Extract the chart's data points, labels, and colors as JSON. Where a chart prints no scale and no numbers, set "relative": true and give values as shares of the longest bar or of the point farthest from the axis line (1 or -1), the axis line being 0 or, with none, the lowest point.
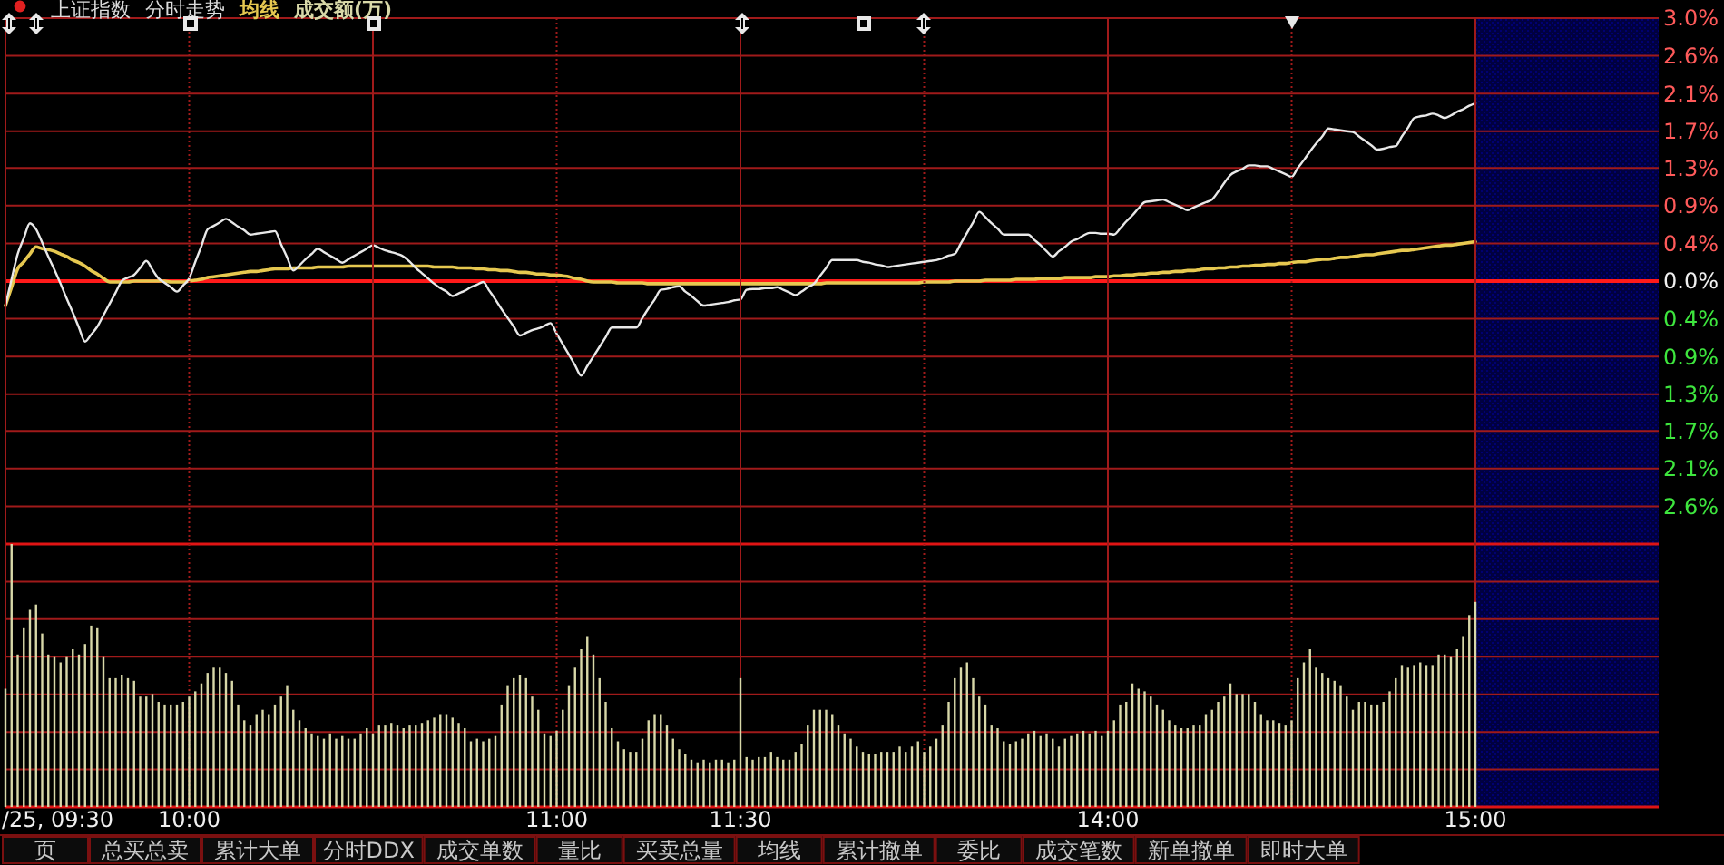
{
  "chart_data": [
    {
      "type": "line",
      "title": "上证指数",
      "subtitle": "分时走势",
      "categories": [
        null,
        null,
        null,
        null,
        null,
        null,
        null,
        null,
        null,
        null,
        null,
        null,
        null,
        null,
        null,
        null,
        null,
        null,
        null,
        null,
        null,
        null,
        null,
        null,
        null,
        null,
        null,
        null,
        null,
        null,
        null,
        null,
        null,
        null,
        null,
        null,
        null,
        null,
        null,
        null,
        null,
        null,
        null,
        null,
        null,
        null,
        null,
        null,
        null,
        null,
        null,
        null,
        null,
        null,
        null,
        null,
        null,
        null,
        null,
        null,
        null,
        null,
        null,
        null,
        null,
        null,
        null,
        null,
        null,
        null,
        null,
        null,
        null,
        null,
        null,
        null,
        null,
        null,
        null,
        null,
        null,
        null,
        null,
        null,
        null,
        null,
        null,
        null,
        null,
        null,
        null,
        null,
        null,
        null,
        null,
        null,
        null,
        null,
        null,
        null,
        null,
        null,
        null,
        null,
        null,
        null,
        null,
        null,
        null,
        null,
        null,
        null,
        null,
        null,
        null,
        null,
        null,
        null,
        null,
        null,
        null,
        null,
        null,
        null,
        null,
        null,
        null,
        null,
        null,
        null,
        null,
        null,
        null,
        null,
        null,
        null,
        null,
        null,
        null,
        null,
        null,
        null,
        null,
        null,
        null,
        null,
        null,
        null,
        null,
        null,
        null,
        null,
        null,
        null,
        null,
        null,
        null,
        null,
        null,
        null,
        null,
        null,
        null,
        null,
        null,
        null,
        null,
        null,
        null,
        null,
        null,
        null,
        null,
        null,
        null,
        null,
        null,
        null,
        null,
        null,
        null,
        null,
        null,
        null,
        null,
        null,
        null,
        null,
        null,
        null,
        null,
        null,
        null,
        null,
        null,
        null,
        null,
        null,
        null,
        null,
        null,
        null,
        null,
        null,
        null,
        null,
        null,
        null,
        null,
        null,
        null,
        null,
        null,
        null,
        null,
        null,
        null,
        null,
        null,
        null,
        null,
        null,
        null,
        null,
        null,
        null,
        null,
        null,
        null,
        null,
        null,
        null,
        null,
        null,
        null,
        null,
        null,
        null,
        null,
        null,
        null
      ],
      "ylim": [
        -3.0,
        3.0
      ],
      "yticks": [
        {
          "value": 3.0,
          "label": "3.0%"
        },
        {
          "value": 2.57,
          "label": "2.6%"
        },
        {
          "value": 2.14,
          "label": "2.1%"
        },
        {
          "value": 1.71,
          "label": "1.7%"
        },
        {
          "value": 1.29,
          "label": "1.3%"
        },
        {
          "value": 0.86,
          "label": "0.9%"
        },
        {
          "value": 0.43,
          "label": "0.4%"
        },
        {
          "value": 0,
          "label": "0.0%"
        },
        {
          "value": -0.43,
          "label": "0.4%"
        },
        {
          "value": -0.86,
          "label": "0.9%"
        },
        {
          "value": -1.29,
          "label": "1.3%"
        },
        {
          "value": -1.71,
          "label": "1.7%"
        },
        {
          "value": -2.14,
          "label": "2.1%"
        },
        {
          "value": -2.57,
          "label": "2.6%"
        },
        {
          "value": -3.0,
          "label": null
        }
      ],
      "series": [
        {
          "color": "#e8e8e8",
          "values": [
            -0.28,
            0.02,
            0.31,
            0.49,
            0.66,
            0.59,
            0.44,
            0.28,
            0.13,
            -0.03,
            -0.2,
            -0.36,
            -0.53,
            -0.69,
            -0.61,
            -0.52,
            -0.39,
            -0.26,
            -0.13,
            0.0,
            0.04,
            0.07,
            0.15,
            0.23,
            0.13,
            0.03,
            -0.02,
            -0.07,
            -0.12,
            -0.05,
            0.03,
            0.22,
            0.4,
            0.59,
            0.63,
            0.67,
            0.71,
            0.67,
            0.62,
            0.58,
            0.53,
            0.54,
            0.55,
            0.56,
            0.57,
            0.42,
            0.27,
            0.12,
            0.18,
            0.25,
            0.31,
            0.37,
            0.33,
            0.29,
            0.25,
            0.21,
            0.25,
            0.29,
            0.33,
            0.37,
            0.41,
            0.38,
            0.35,
            0.33,
            0.31,
            0.28,
            0.22,
            0.15,
            0.09,
            0.03,
            -0.03,
            -0.08,
            -0.12,
            -0.17,
            -0.14,
            -0.11,
            -0.07,
            -0.04,
            -0.01,
            -0.11,
            -0.21,
            -0.32,
            -0.42,
            -0.52,
            -0.62,
            -0.59,
            -0.56,
            -0.54,
            -0.51,
            -0.48,
            -0.6,
            -0.72,
            -0.84,
            -0.96,
            -1.08,
            -0.97,
            -0.86,
            -0.75,
            -0.64,
            -0.53,
            -0.53,
            -0.53,
            -0.53,
            -0.53,
            -0.42,
            -0.31,
            -0.21,
            -0.1,
            -0.09,
            -0.07,
            -0.06,
            -0.12,
            -0.17,
            -0.23,
            -0.28,
            -0.27,
            -0.26,
            -0.25,
            -0.24,
            -0.22,
            -0.21,
            -0.1,
            -0.09,
            -0.09,
            -0.08,
            -0.08,
            -0.07,
            -0.1,
            -0.13,
            -0.16,
            -0.12,
            -0.07,
            -0.03,
            0.06,
            0.15,
            0.24,
            0.24,
            0.24,
            0.24,
            0.24,
            0.22,
            0.21,
            0.19,
            0.18,
            0.16,
            0.17,
            0.18,
            0.19,
            0.2,
            0.21,
            0.22,
            0.23,
            0.24,
            0.26,
            0.29,
            0.31,
            0.43,
            0.55,
            0.67,
            0.79,
            0.73,
            0.66,
            0.6,
            0.53,
            0.53,
            0.53,
            0.53,
            0.53,
            0.47,
            0.41,
            0.34,
            0.28,
            0.34,
            0.39,
            0.45,
            0.48,
            0.52,
            0.55,
            0.55,
            0.54,
            0.54,
            0.53,
            0.6,
            0.68,
            0.75,
            0.83,
            0.9,
            0.91,
            0.92,
            0.93,
            0.9,
            0.87,
            0.84,
            0.81,
            0.84,
            0.87,
            0.9,
            0.93,
            1.02,
            1.12,
            1.21,
            1.25,
            1.28,
            1.32,
            1.32,
            1.31,
            1.31,
            1.28,
            1.25,
            1.22,
            1.19,
            1.29,
            1.38,
            1.48,
            1.57,
            1.65,
            1.74,
            1.73,
            1.72,
            1.71,
            1.7,
            1.65,
            1.6,
            1.55,
            1.5,
            1.51,
            1.53,
            1.54,
            1.65,
            1.75,
            1.86,
            1.88,
            1.89,
            1.91,
            1.89,
            1.86,
            1.89,
            1.93,
            1.96,
            2.0,
            2.03
          ]
        },
        {
          "name": "均线",
          "color": "#e6c850",
          "values": [
            -0.28,
            -0.07,
            0.14,
            0.22,
            0.31,
            0.39,
            0.37,
            0.36,
            0.34,
            0.31,
            0.28,
            0.24,
            0.21,
            0.17,
            0.12,
            0.08,
            0.03,
            -0.01,
            -0.01,
            -0.01,
            -0.01,
            0.0,
            0.0,
            0.0,
            0.0,
            0.0,
            0.0,
            -0.01,
            -0.01,
            -0.01,
            0.0,
            0.01,
            0.02,
            0.04,
            0.05,
            0.06,
            0.07,
            0.08,
            0.09,
            0.1,
            0.11,
            0.11,
            0.12,
            0.13,
            0.14,
            0.14,
            0.14,
            0.15,
            0.15,
            0.15,
            0.15,
            0.16,
            0.16,
            0.16,
            0.16,
            0.16,
            0.17,
            0.17,
            0.17,
            0.17,
            0.17,
            0.17,
            0.17,
            0.17,
            0.17,
            0.17,
            0.17,
            0.17,
            0.17,
            0.17,
            0.16,
            0.16,
            0.16,
            0.16,
            0.15,
            0.15,
            0.15,
            0.14,
            0.14,
            0.13,
            0.13,
            0.12,
            0.12,
            0.11,
            0.1,
            0.1,
            0.09,
            0.08,
            0.08,
            0.07,
            0.07,
            0.06,
            0.05,
            0.03,
            0.02,
            0.0,
            -0.01,
            -0.01,
            -0.01,
            -0.01,
            -0.02,
            -0.02,
            -0.02,
            -0.02,
            -0.02,
            -0.03,
            -0.03,
            -0.03,
            -0.03,
            -0.03,
            -0.03,
            -0.03,
            -0.03,
            -0.03,
            -0.03,
            -0.03,
            -0.03,
            -0.03,
            -0.03,
            -0.03,
            -0.03,
            -0.03,
            -0.03,
            -0.03,
            -0.03,
            -0.03,
            -0.03,
            -0.03,
            -0.03,
            -0.03,
            -0.03,
            -0.03,
            -0.03,
            -0.03,
            -0.02,
            -0.02,
            -0.02,
            -0.02,
            -0.02,
            -0.02,
            -0.02,
            -0.02,
            -0.02,
            -0.02,
            -0.02,
            -0.02,
            -0.02,
            -0.02,
            -0.02,
            -0.02,
            -0.01,
            -0.01,
            -0.01,
            -0.01,
            -0.01,
            0.0,
            0.0,
            0.0,
            0.0,
            0.0,
            0.01,
            0.01,
            0.01,
            0.01,
            0.01,
            0.02,
            0.02,
            0.02,
            0.02,
            0.03,
            0.03,
            0.03,
            0.03,
            0.04,
            0.04,
            0.04,
            0.04,
            0.04,
            0.05,
            0.05,
            0.05,
            0.06,
            0.06,
            0.07,
            0.07,
            0.08,
            0.08,
            0.09,
            0.09,
            0.1,
            0.1,
            0.11,
            0.11,
            0.12,
            0.12,
            0.13,
            0.14,
            0.14,
            0.15,
            0.15,
            0.16,
            0.16,
            0.17,
            0.17,
            0.18,
            0.18,
            0.19,
            0.19,
            0.2,
            0.2,
            0.21,
            0.22,
            0.22,
            0.23,
            0.24,
            0.25,
            0.25,
            0.26,
            0.27,
            0.27,
            0.28,
            0.29,
            0.3,
            0.3,
            0.31,
            0.32,
            0.33,
            0.34,
            0.35,
            0.35,
            0.36,
            0.37,
            0.38,
            0.39,
            0.4,
            0.41,
            0.41,
            0.42,
            0.43,
            0.44,
            0.45
          ]
        }
      ],
      "grid": "y",
      "tick_labels": "y",
      "ref_lines": [
        {
          "axis": "y",
          "value": 0,
          "color": "#ff1a1a"
        }
      ],
      "annotations": [
        "/25, 09:30"
      ]
    },
    {
      "type": "bar",
      "relative": true,
      "categories": [
        null,
        null,
        null,
        null,
        null,
        null,
        null,
        null,
        null,
        null,
        null,
        null,
        null,
        null,
        null,
        null,
        null,
        null,
        null,
        null,
        null,
        null,
        null,
        null,
        null,
        null,
        null,
        null,
        null,
        null,
        "10:00",
        null,
        null,
        null,
        null,
        null,
        null,
        null,
        null,
        null,
        null,
        null,
        null,
        null,
        null,
        null,
        null,
        null,
        null,
        null,
        null,
        null,
        null,
        null,
        null,
        null,
        null,
        null,
        null,
        null,
        null,
        null,
        null,
        null,
        null,
        null,
        null,
        null,
        null,
        null,
        null,
        null,
        null,
        null,
        null,
        null,
        null,
        null,
        null,
        null,
        null,
        null,
        null,
        null,
        null,
        null,
        null,
        null,
        null,
        null,
        "11:00",
        null,
        null,
        null,
        null,
        null,
        null,
        null,
        null,
        null,
        null,
        null,
        null,
        null,
        null,
        null,
        null,
        null,
        null,
        null,
        null,
        null,
        null,
        null,
        null,
        null,
        null,
        null,
        null,
        null,
        "11:30",
        null,
        null,
        null,
        null,
        null,
        null,
        null,
        null,
        null,
        null,
        null,
        null,
        null,
        null,
        null,
        null,
        null,
        null,
        null,
        null,
        null,
        null,
        null,
        null,
        null,
        null,
        null,
        null,
        null,
        null,
        null,
        null,
        null,
        null,
        null,
        null,
        null,
        null,
        null,
        null,
        null,
        null,
        null,
        null,
        null,
        null,
        null,
        null,
        null,
        null,
        null,
        null,
        null,
        null,
        null,
        null,
        null,
        null,
        null,
        "14:00",
        null,
        null,
        null,
        null,
        null,
        null,
        null,
        null,
        null,
        null,
        null,
        null,
        null,
        null,
        null,
        null,
        null,
        null,
        null,
        null,
        null,
        null,
        null,
        null,
        null,
        null,
        null,
        null,
        null,
        null,
        null,
        null,
        null,
        null,
        null,
        null,
        null,
        null,
        null,
        null,
        null,
        null,
        null,
        null,
        null,
        null,
        null,
        null,
        null,
        null,
        null,
        null,
        null,
        null,
        null,
        null,
        null,
        null,
        null,
        "15:00"
      ],
      "series": [
        {
          "name": "成交额(万)",
          "color": "#d8d8a8",
          "values": [
            0.45,
            1.0,
            0.58,
            0.68,
            0.75,
            0.77,
            0.66,
            0.58,
            0.57,
            0.55,
            0.57,
            0.6,
            0.58,
            0.62,
            0.69,
            0.68,
            0.57,
            0.49,
            0.49,
            0.5,
            0.49,
            0.48,
            0.42,
            0.42,
            0.43,
            0.4,
            0.39,
            0.39,
            0.39,
            0.4,
            0.42,
            0.44,
            0.47,
            0.51,
            0.53,
            0.53,
            0.51,
            0.48,
            0.39,
            0.33,
            0.31,
            0.35,
            0.37,
            0.35,
            0.39,
            0.42,
            0.46,
            0.37,
            0.33,
            0.3,
            0.28,
            0.27,
            0.26,
            0.28,
            0.26,
            0.27,
            0.26,
            0.26,
            0.28,
            0.3,
            0.28,
            0.31,
            0.31,
            0.32,
            0.31,
            0.3,
            0.31,
            0.31,
            0.32,
            0.33,
            0.34,
            0.35,
            0.35,
            0.34,
            0.32,
            0.3,
            0.25,
            0.26,
            0.25,
            0.26,
            0.27,
            0.39,
            0.46,
            0.49,
            0.5,
            0.49,
            0.42,
            0.37,
            0.28,
            0.27,
            0.29,
            0.37,
            0.46,
            0.53,
            0.6,
            0.65,
            0.58,
            0.49,
            0.4,
            0.3,
            0.25,
            0.22,
            0.21,
            0.21,
            0.26,
            0.33,
            0.35,
            0.35,
            0.31,
            0.26,
            0.22,
            0.2,
            0.18,
            0.17,
            0.18,
            0.17,
            0.18,
            0.18,
            0.17,
            0.18,
            0.49,
            0.19,
            0.18,
            0.19,
            0.19,
            0.21,
            0.19,
            0.18,
            0.18,
            0.21,
            0.24,
            0.31,
            0.37,
            0.37,
            0.37,
            0.35,
            0.31,
            0.28,
            0.26,
            0.23,
            0.21,
            0.2,
            0.2,
            0.21,
            0.21,
            0.21,
            0.23,
            0.21,
            0.23,
            0.25,
            0.21,
            0.23,
            0.26,
            0.31,
            0.4,
            0.49,
            0.53,
            0.55,
            0.49,
            0.42,
            0.39,
            0.31,
            0.3,
            0.25,
            0.24,
            0.25,
            0.26,
            0.28,
            0.29,
            0.27,
            0.28,
            0.26,
            0.23,
            0.26,
            0.27,
            0.28,
            0.29,
            0.28,
            0.29,
            0.27,
            0.29,
            0.33,
            0.39,
            0.4,
            0.47,
            0.45,
            0.44,
            0.42,
            0.39,
            0.37,
            0.33,
            0.31,
            0.3,
            0.3,
            0.31,
            0.31,
            0.35,
            0.37,
            0.4,
            0.42,
            0.47,
            0.43,
            0.43,
            0.43,
            0.4,
            0.35,
            0.33,
            0.33,
            0.32,
            0.31,
            0.33,
            0.49,
            0.55,
            0.6,
            0.53,
            0.51,
            0.49,
            0.48,
            0.46,
            0.42,
            0.37,
            0.4,
            0.4,
            0.39,
            0.39,
            0.4,
            0.44,
            0.49,
            0.54,
            0.53,
            0.54,
            0.55,
            0.54,
            0.54,
            0.58,
            0.58,
            0.57,
            0.6,
            0.65,
            0.73,
            0.78
          ]
        }
      ],
      "grid": true,
      "annotations": [
        "页",
        "总买总卖",
        "累计大单",
        "分时DDX",
        "成交单数",
        "量比",
        "买卖总量",
        "均线",
        "累计撤单",
        "委比",
        "成交笔数",
        "新单撤单",
        "即时大单"
      ]
    }
  ]
}
